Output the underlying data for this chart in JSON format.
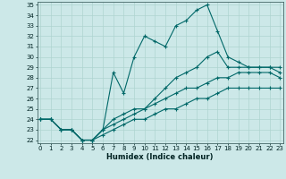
{
  "xlabel": "Humidex (Indice chaleur)",
  "x": [
    0,
    1,
    2,
    3,
    4,
    5,
    6,
    7,
    8,
    9,
    10,
    11,
    12,
    13,
    14,
    15,
    16,
    17,
    18,
    19,
    20,
    21,
    22,
    23
  ],
  "line_peak": [
    24,
    24,
    23,
    23,
    22,
    22,
    23,
    28.5,
    26.5,
    30,
    32,
    31.5,
    31,
    33,
    33.5,
    34.5,
    35,
    32.5,
    30,
    29.5,
    29,
    29,
    29,
    29
  ],
  "line_upper": [
    24,
    24,
    23,
    23,
    22,
    22,
    23,
    24,
    24.5,
    25,
    25,
    26,
    27,
    28,
    28.5,
    29,
    30,
    30.5,
    29,
    29,
    29,
    29,
    29,
    28.5
  ],
  "line_mid": [
    24,
    24,
    23,
    23,
    22,
    22,
    23,
    23.5,
    24,
    24.5,
    25,
    25.5,
    26,
    26.5,
    27,
    27,
    27.5,
    28,
    28,
    28.5,
    28.5,
    28.5,
    28.5,
    28
  ],
  "line_lower": [
    24,
    24,
    23,
    23,
    22,
    22,
    22.5,
    23,
    23.5,
    24,
    24,
    24.5,
    25,
    25,
    25.5,
    26,
    26,
    26.5,
    27,
    27,
    27,
    27,
    27,
    27
  ],
  "bg_color": "#cce8e8",
  "grid_color": "#aed4d0",
  "line_color": "#006868",
  "ylim": [
    22,
    35
  ],
  "yticks": [
    22,
    23,
    24,
    25,
    26,
    27,
    28,
    29,
    30,
    31,
    32,
    33,
    34,
    35
  ],
  "xticks": [
    0,
    1,
    2,
    3,
    4,
    5,
    6,
    7,
    8,
    9,
    10,
    11,
    12,
    13,
    14,
    15,
    16,
    17,
    18,
    19,
    20,
    21,
    22,
    23
  ]
}
